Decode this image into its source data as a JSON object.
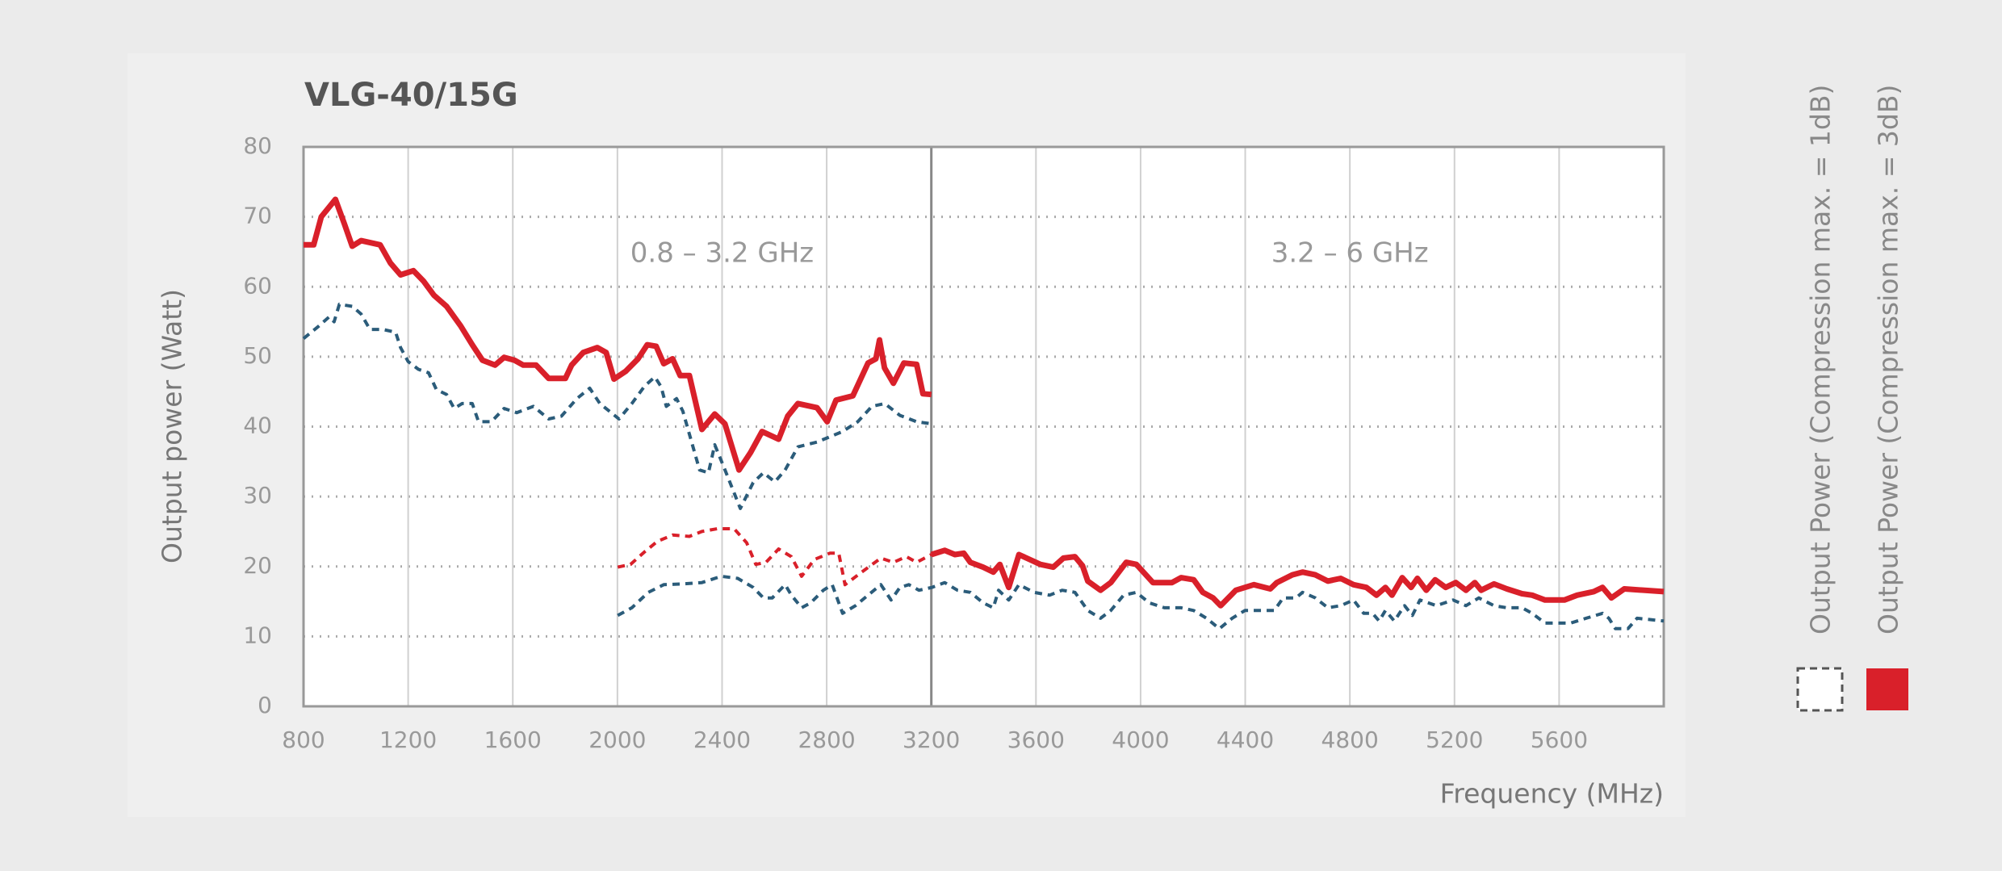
{
  "chart_data": {
    "type": "line",
    "title": "VLG-40/15G",
    "y_label": "Output power (Watt)",
    "x_label": "Frequency (MHz)",
    "annotations": [
      {
        "text": "0.8 – 3.2 GHz",
        "x": 2400
      },
      {
        "text": "3.2 – 6 GHz",
        "x": 4800
      }
    ],
    "xlim": [
      800,
      6000
    ],
    "xticks": [
      800,
      1200,
      1600,
      2000,
      2400,
      2800,
      3200,
      3600,
      4000,
      4400,
      4800,
      5200,
      5600
    ],
    "ylim": [
      0,
      80
    ],
    "yticks": [
      0,
      10,
      20,
      30,
      40,
      50,
      60,
      70,
      80
    ],
    "dividers": [
      3200
    ],
    "grid": true,
    "legend": [
      {
        "name": "Output Power (Compression max. = 1dB)",
        "color": "#555555",
        "dashed": true
      },
      {
        "name": "Output Power (Compression max. = 3dB)",
        "color": "#d9202a",
        "dashed": false
      }
    ],
    "series": [
      {
        "color": "#d9202a",
        "dashed": false,
        "x": [
          800,
          839,
          868,
          922,
          956,
          986,
          1020,
          1093,
          1132,
          1171,
          1220,
          1259,
          1298,
          1347,
          1401,
          1445,
          1484,
          1532,
          1567,
          1606,
          1640,
          1689,
          1737,
          1801,
          1825,
          1869,
          1923,
          1957,
          1987,
          2031,
          2079,
          2114,
          2148,
          2177,
          2211,
          2240,
          2275,
          2323,
          2372,
          2411,
          2465,
          2509,
          2553,
          2616,
          2651,
          2690,
          2763,
          2802,
          2836,
          2900,
          2958,
          2988,
          3002,
          3021,
          3055,
          3095,
          3144,
          3168,
          3200
        ],
        "values": [
          66,
          66,
          70,
          72.5,
          69,
          65.8,
          66.6,
          66,
          63.4,
          61.7,
          62.3,
          60.8,
          58.8,
          57.2,
          54.4,
          51.7,
          49.5,
          48.8,
          49.9,
          49.5,
          48.8,
          48.8,
          46.9,
          46.9,
          48.8,
          50.6,
          51.3,
          50.6,
          46.8,
          47.9,
          49.7,
          51.7,
          51.5,
          49,
          49.7,
          47.3,
          47.3,
          39.6,
          41.8,
          40.4,
          33.8,
          36.3,
          39.3,
          38.2,
          41.5,
          43.3,
          42.7,
          40.7,
          43.8,
          44.4,
          49.1,
          49.7,
          52.4,
          48.4,
          46.2,
          49.1,
          48.9,
          44.7,
          44.6
        ]
      },
      {
        "color": "#2b5c7a",
        "dashed": true,
        "x": [
          800,
          859,
          898,
          917,
          937,
          986,
          1020,
          1054,
          1103,
          1152,
          1171,
          1200,
          1239,
          1278,
          1308,
          1347,
          1376,
          1406,
          1445,
          1469,
          1518,
          1567,
          1615,
          1679,
          1737,
          1786,
          1845,
          1894,
          1933,
          2006,
          2055,
          2104,
          2143,
          2167,
          2187,
          2226,
          2250,
          2314,
          2348,
          2372,
          2406,
          2470,
          2519,
          2558,
          2602,
          2641,
          2690,
          2763,
          2861,
          2919,
          2973,
          3022,
          3080,
          3144,
          3200
        ],
        "values": [
          52.6,
          54.4,
          55.7,
          55,
          57.5,
          57.2,
          56.1,
          53.9,
          53.9,
          53.5,
          51.3,
          49.3,
          48.2,
          47.7,
          45.3,
          44.6,
          42.6,
          43.3,
          43.3,
          40.7,
          40.7,
          42.6,
          42,
          42.9,
          41.1,
          41.5,
          44,
          45.5,
          43.3,
          41.1,
          43.3,
          45.8,
          47.1,
          45.7,
          42.9,
          44,
          42.2,
          33.8,
          33.4,
          37.4,
          34.3,
          28.3,
          32,
          33.4,
          32.1,
          33.8,
          37.1,
          37.8,
          39.3,
          40.7,
          42.9,
          43.3,
          41.6,
          40.7,
          40.4
        ]
      },
      {
        "color": "#d9202a",
        "dashed": true,
        "x": [
          2001,
          2050,
          2104,
          2153,
          2211,
          2275,
          2323,
          2382,
          2446,
          2494,
          2529,
          2568,
          2616,
          2665,
          2704,
          2753,
          2812,
          2846,
          2870,
          2934,
          3007,
          3055,
          3105,
          3144,
          3200
        ],
        "values": [
          19.9,
          20.3,
          22.1,
          23.6,
          24.5,
          24.3,
          25,
          25.4,
          25.4,
          23.4,
          20.3,
          20.6,
          22.5,
          21.4,
          18.6,
          21,
          21.9,
          21.9,
          17.4,
          19.2,
          21.2,
          20.6,
          21.4,
          20.6,
          21.7
        ]
      },
      {
        "color": "#d9202a",
        "dashed": false,
        "x": [
          3200,
          3251,
          3290,
          3324,
          3349,
          3398,
          3437,
          3462,
          3496,
          3535,
          3617,
          3666,
          3705,
          3749,
          3778,
          3798,
          3847,
          3886,
          3945,
          3984,
          4047,
          4120,
          4155,
          4203,
          4238,
          4277,
          4306,
          4364,
          4433,
          4496,
          4521,
          4580,
          4619,
          4668,
          4716,
          4765,
          4814,
          4863,
          4902,
          4936,
          4961,
          5000,
          5034,
          5058,
          5092,
          5126,
          5166,
          5205,
          5244,
          5278,
          5302,
          5351,
          5400,
          5458,
          5497,
          5546,
          5620,
          5669,
          5732,
          5766,
          5800,
          5849,
          6000
        ],
        "values": [
          21.7,
          22.3,
          21.7,
          21.9,
          20.6,
          19.9,
          19.2,
          20.3,
          17,
          21.7,
          20.3,
          19.9,
          21.2,
          21.4,
          20.1,
          17.9,
          16.6,
          17.7,
          20.6,
          20.3,
          17.7,
          17.7,
          18.4,
          18.1,
          16.3,
          15.5,
          14.4,
          16.6,
          17.4,
          16.8,
          17.7,
          18.8,
          19.2,
          18.8,
          17.9,
          18.3,
          17.4,
          17,
          15.9,
          17,
          15.9,
          18.4,
          17,
          18.3,
          16.6,
          18.1,
          17,
          17.7,
          16.6,
          17.7,
          16.6,
          17.5,
          16.8,
          16.1,
          15.9,
          15.2,
          15.2,
          15.9,
          16.4,
          17,
          15.5,
          16.8,
          16.4
        ]
      },
      {
        "color": "#2b5c7a",
        "dashed": true,
        "x": [
          2001,
          2055,
          2118,
          2177,
          2250,
          2323,
          2397,
          2460,
          2519,
          2558,
          2592,
          2641,
          2665,
          2704,
          2739,
          2787,
          2821,
          2861,
          2910,
          2958,
          3007,
          3046,
          3080,
          3114,
          3153,
          3202,
          3251,
          3300,
          3349,
          3398,
          3437,
          3457,
          3496,
          3535,
          3593,
          3652,
          3700,
          3749,
          3798,
          3847,
          3886,
          3935,
          3984,
          4033,
          4091,
          4155,
          4203,
          4252,
          4301,
          4350,
          4399,
          4472,
          4511,
          4545,
          4594,
          4619,
          4668,
          4716,
          4765,
          4814,
          4853,
          4887,
          4912,
          4936,
          4970,
          5009,
          5039,
          5068,
          5131,
          5195,
          5244,
          5293,
          5351,
          5400,
          5458,
          5497,
          5546,
          5644,
          5703,
          5766,
          5790,
          5815,
          5863,
          5898,
          6000
        ],
        "values": [
          13,
          14.1,
          16.3,
          17.4,
          17.5,
          17.7,
          18.6,
          18.3,
          17,
          15.5,
          15.5,
          17.4,
          15.9,
          14.1,
          14.8,
          16.6,
          17.4,
          13.3,
          14.4,
          15.9,
          17.4,
          15.2,
          17,
          17.4,
          16.6,
          17,
          17.7,
          16.6,
          16.3,
          14.8,
          14.1,
          16.6,
          15.2,
          17.4,
          16.3,
          15.9,
          16.6,
          16.3,
          13.7,
          12.6,
          13.7,
          15.9,
          16.3,
          14.8,
          14.1,
          14.1,
          13.7,
          12.6,
          11.1,
          12.6,
          13.7,
          13.7,
          13.7,
          15.5,
          15.5,
          16.3,
          15.5,
          14.1,
          14.4,
          15.2,
          13.3,
          13.3,
          12.2,
          13.7,
          12.2,
          14.4,
          13,
          15.2,
          14.4,
          15.2,
          14.4,
          15.5,
          14.4,
          14.1,
          14.1,
          13.3,
          11.9,
          11.9,
          12.6,
          13.3,
          12.6,
          11.1,
          11.1,
          12.6,
          12.2
        ]
      }
    ]
  }
}
